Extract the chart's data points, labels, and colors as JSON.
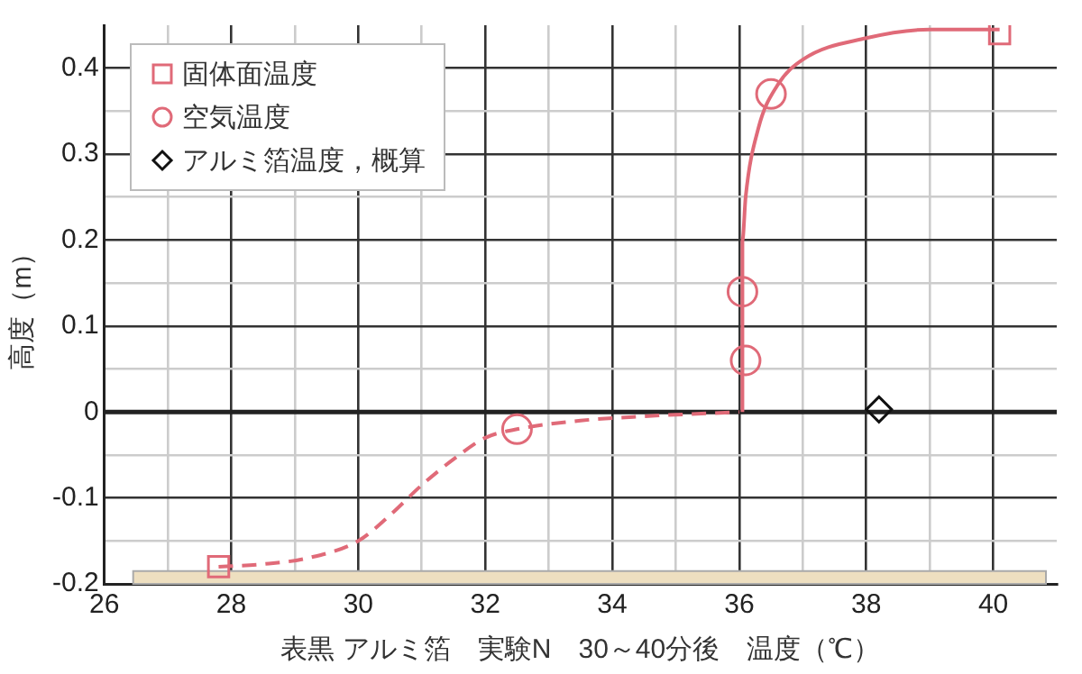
{
  "chart_data": {
    "type": "scatter",
    "xlabel": "表黒 アルミ箔　実験N　30～40分後　温度（℃）",
    "ylabel": "高度（m）",
    "xlim": [
      26,
      41
    ],
    "ylim": [
      -0.2,
      0.45
    ],
    "xticks": [
      26,
      {
        "value": 27,
        "label": null
      },
      28,
      {
        "value": 29,
        "label": null
      },
      30,
      {
        "value": 31,
        "label": null
      },
      32,
      {
        "value": 33,
        "label": null
      },
      34,
      {
        "value": 35,
        "label": null
      },
      36,
      {
        "value": 37,
        "label": null
      },
      38,
      {
        "value": 39,
        "label": null
      },
      40
    ],
    "yticks": [
      -0.2,
      {
        "value": -0.15,
        "label": null
      },
      -0.1,
      {
        "value": -0.05,
        "label": null
      },
      0,
      {
        "value": 0.05,
        "label": null
      },
      0.1,
      {
        "value": 0.15,
        "label": null
      },
      0.2,
      {
        "value": 0.25,
        "label": null
      },
      0.3,
      {
        "value": 0.35,
        "label": null
      },
      0.4
    ],
    "grid": true,
    "legend": "top left",
    "ref_lines": [
      {
        "axis": "y",
        "value": 0,
        "color": "#222222"
      }
    ],
    "bands": [
      {
        "axis": "y",
        "from": -0.2,
        "to": -0.185,
        "color": "#eedfc0"
      }
    ],
    "series": [
      {
        "type": "line",
        "color": "#e06a78",
        "marker": "none",
        "line_style": "dashed",
        "x": [
          27.8,
          28.5,
          29.2,
          30,
          30.5,
          31,
          31.5,
          32,
          32.5,
          33.5,
          34.5,
          36
        ],
        "values": [
          -0.18,
          -0.177,
          -0.17,
          -0.15,
          -0.12,
          -0.085,
          -0.055,
          -0.03,
          -0.02,
          -0.01,
          -0.005,
          0
        ]
      },
      {
        "type": "line",
        "color": "#e06a78",
        "marker": "none",
        "line_style": "solid",
        "x": [
          36.05,
          36.05,
          36.05,
          36.1,
          36.3,
          36.6,
          37,
          38,
          39,
          40.1
        ],
        "values": [
          0,
          0.1,
          0.2,
          0.25,
          0.33,
          0.38,
          0.41,
          0.435,
          0.445,
          0.445
        ]
      },
      {
        "name": "固体面温度",
        "type": "scatter",
        "color": "#e06a78",
        "marker": "square",
        "x": [
          27.8,
          40.1
        ],
        "values": [
          -0.18,
          0.44
        ]
      },
      {
        "name": "空気温度",
        "type": "scatter",
        "color": "#e06a78",
        "marker": "circle",
        "x": [
          32.5,
          36.1,
          36.05,
          36.5
        ],
        "values": [
          -0.02,
          0.06,
          0.14,
          0.37
        ]
      },
      {
        "name": "アルミ箔温度，概算",
        "type": "scatter",
        "color": "#111111",
        "marker": "diamond",
        "x": [
          38.2
        ],
        "values": [
          0.003
        ]
      }
    ]
  }
}
